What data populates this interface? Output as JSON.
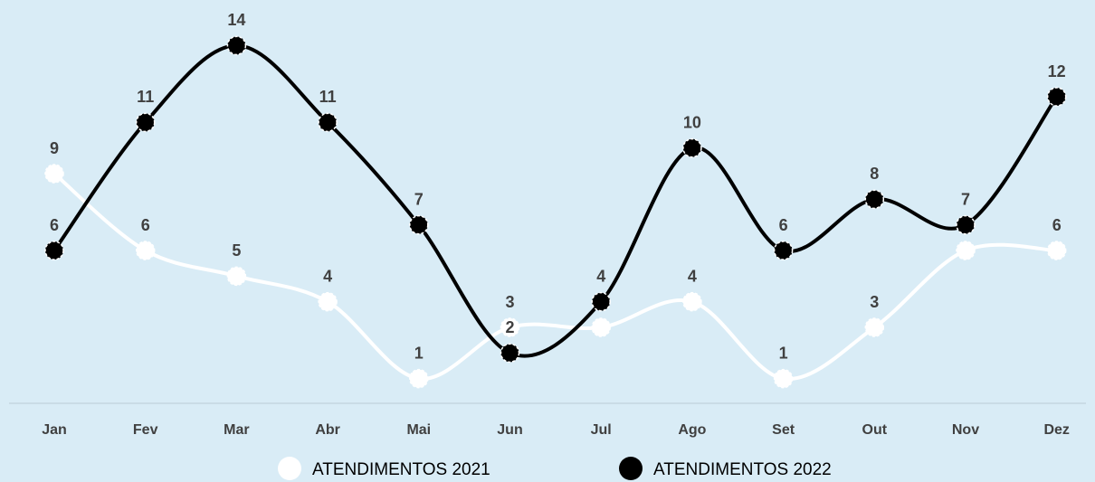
{
  "chart_data": {
    "type": "line",
    "categories": [
      "Jan",
      "Fev",
      "Mar",
      "Abr",
      "Mai",
      "Jun",
      "Jul",
      "Ago",
      "Set",
      "Out",
      "Nov",
      "Dez"
    ],
    "series": [
      {
        "name": "ATENDIMENTOS 2021",
        "color": "#ffffff",
        "values": [
          9,
          6,
          5,
          4,
          1,
          3,
          3,
          4,
          1,
          3,
          6,
          6
        ]
      },
      {
        "name": "ATENDIMENTOS 2022",
        "color": "#000000",
        "values": [
          6,
          11,
          14,
          11,
          7,
          2,
          4,
          10,
          6,
          8,
          7,
          12
        ]
      }
    ],
    "ylim": [
      0,
      15
    ],
    "smooth": true,
    "legend": "bottom"
  }
}
